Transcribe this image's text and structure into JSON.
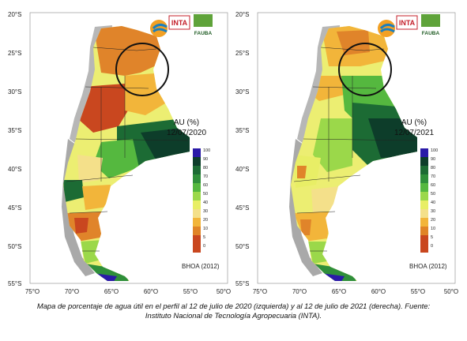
{
  "panels": [
    {
      "id": "left",
      "legend_title": "AU (%)",
      "legend_date": "12/07/2020",
      "source": "BHOA (2012)"
    },
    {
      "id": "right",
      "legend_title": "AU (%)",
      "legend_date": "12/07/2021",
      "source": "BHOA (2012)"
    }
  ],
  "logos": {
    "inta": "INTA",
    "fauba": "FAUBA"
  },
  "axes": {
    "lat_labels": [
      "20°S",
      "25°S",
      "30°S",
      "35°S",
      "40°S",
      "45°S",
      "50°S",
      "55°S"
    ],
    "lon_labels": [
      "75°O",
      "70°O",
      "65°O",
      "60°O",
      "55°O",
      "50°O"
    ]
  },
  "legend": {
    "levels": [
      "100",
      "90",
      "80",
      "70",
      "60",
      "50",
      "40",
      "30",
      "20",
      "10",
      "5",
      "0"
    ],
    "colors": [
      "#2a1aa8",
      "#0d3d2a",
      "#1c6b34",
      "#2f8f3a",
      "#55b83f",
      "#9bd84a",
      "#e8ee66",
      "#f4e08a",
      "#f2b53a",
      "#e08427",
      "#c9471f",
      "#c9471f"
    ]
  },
  "caption": {
    "line1": "Mapa de porcentaje de agua útil en el perfil al 12 de julio de 2020 (izquierda) y al 12 de julio de 2021 (derecha). Fuente:",
    "line2": "Instituto Nacional de Tecnología Agropecuaria (INTA)."
  }
}
